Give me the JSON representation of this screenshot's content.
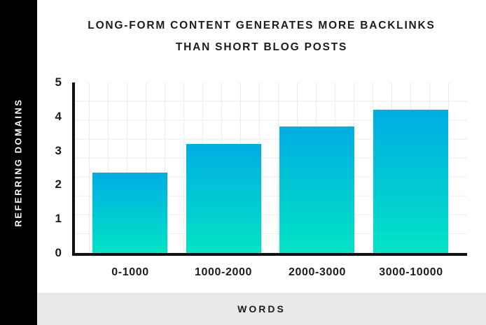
{
  "title": {
    "line1": "LONG-FORM CONTENT GENERATES MORE BACKLINKS",
    "line2": "THAN SHORT BLOG POSTS"
  },
  "y_axis": {
    "label": "REFERRING DOMAINS",
    "tick_labels": [
      "5",
      "4",
      "3",
      "2",
      "1",
      "0"
    ]
  },
  "x_axis": {
    "label": "WORDS",
    "tick_labels": [
      "0-1000",
      "1000-2000",
      "2000-3000",
      "3000-10000"
    ]
  },
  "chart_data": {
    "type": "bar",
    "categories": [
      "0-1000",
      "1000-2000",
      "2000-3000",
      "3000-10000"
    ],
    "values": [
      2.35,
      3.2,
      3.7,
      4.2
    ],
    "title": "LONG-FORM CONTENT GENERATES MORE BACKLINKS THAN SHORT BLOG POSTS",
    "xlabel": "WORDS",
    "ylabel": "REFERRING DOMAINS",
    "ylim": [
      0,
      5
    ],
    "y_tick_step": 1,
    "grid": true,
    "legend": false,
    "bar_color_top": "#00ade3",
    "bar_color_bottom": "#02e3c4"
  },
  "colors": {
    "sidebar_bg": "#000000",
    "sidebar_text": "#ffffff",
    "text": "#1c1c1c",
    "footer_bg": "#e9e9e9",
    "grid_line": "#ececec",
    "axis": "#111111"
  }
}
